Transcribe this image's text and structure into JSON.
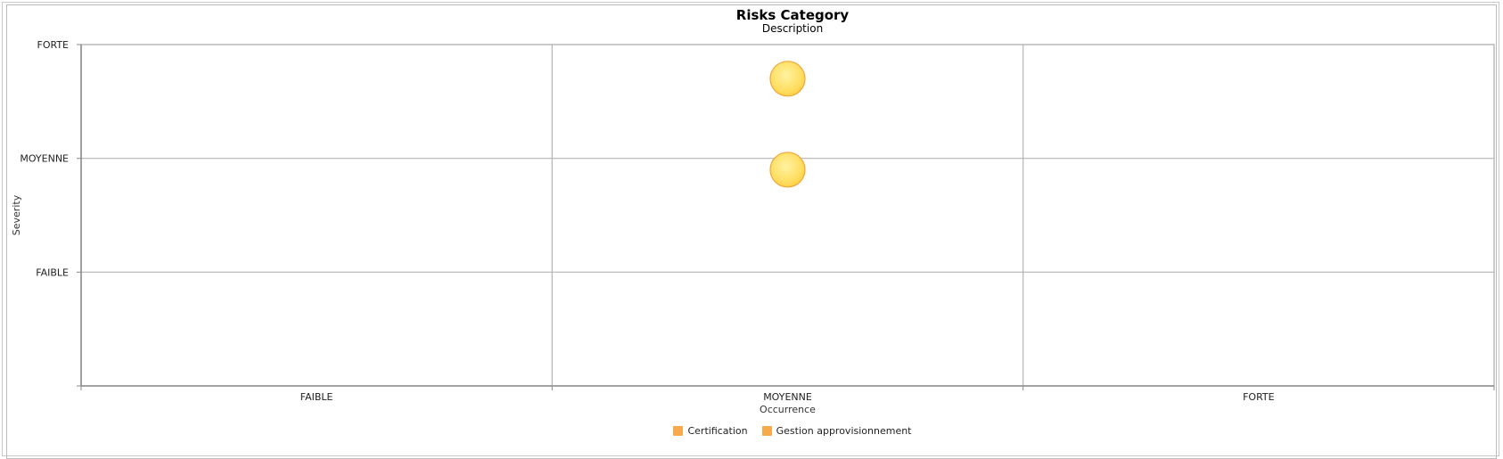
{
  "chart_data": {
    "type": "bubble",
    "title": "Risks Category",
    "subtitle": "Description",
    "xlabel": "Occurrence",
    "ylabel": "Severity",
    "x_categories": [
      "FAIBLE",
      "MOYENNE",
      "FORTE"
    ],
    "y_categories": [
      "FAIBLE",
      "MOYENNE",
      "FORTE"
    ],
    "grid": true,
    "legend_position": "bottom-center",
    "series": [
      {
        "name": "Certification",
        "color": "#f7a94b",
        "points": [
          {
            "x": "MOYENNE",
            "y": 2.7
          }
        ]
      },
      {
        "name": "Gestion approvisionnement",
        "color": "#f7a94b",
        "points": [
          {
            "x": "MOYENNE",
            "y": 1.9
          }
        ]
      }
    ],
    "bubble_fill": "#ffe066",
    "bubble_stroke": "#f2a43a"
  }
}
